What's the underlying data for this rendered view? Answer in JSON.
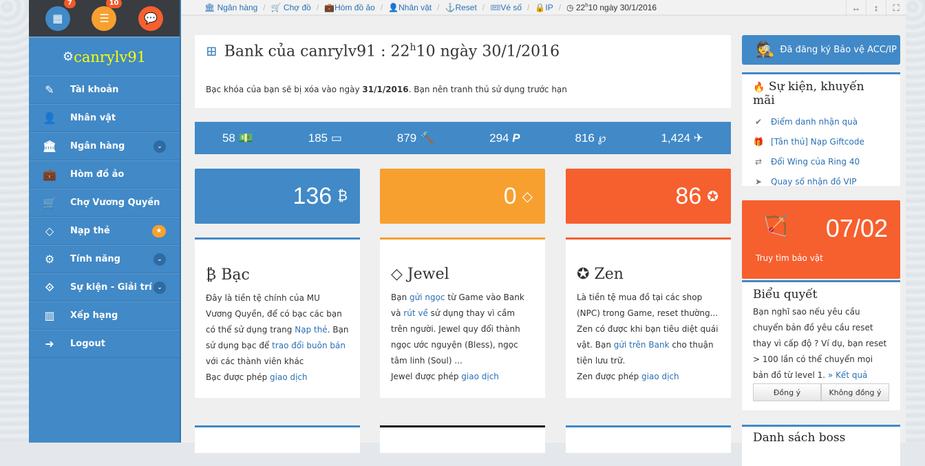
{
  "sidebar": {
    "notifications": [
      {
        "icon": "calendar-icon",
        "count": "7",
        "color": "#4189c7"
      },
      {
        "icon": "list-icon",
        "count": "10",
        "color": "#f7a030"
      },
      {
        "icon": "chat-icon",
        "count": "",
        "color": "#f65f2e"
      }
    ],
    "username": "canrylv91",
    "items": [
      {
        "label": "Tài khoản",
        "icon": "edit-icon"
      },
      {
        "label": "Nhân vật",
        "icon": "user-icon"
      },
      {
        "label": "Ngân hàng",
        "icon": "bank-icon",
        "expandable": true
      },
      {
        "label": "Hòm đồ ảo",
        "icon": "suitcase-icon"
      },
      {
        "label": "Chợ Vương Quyền",
        "icon": "cart-icon"
      },
      {
        "label": "Nạp thẻ",
        "icon": "diamond-icon",
        "star": true
      },
      {
        "label": "Tính năng",
        "icon": "gears-icon",
        "expandable": true
      },
      {
        "label": "Sự kiện - Giải trí",
        "icon": "link-icon",
        "expandable": true
      },
      {
        "label": "Xếp hạng",
        "icon": "bar-chart-icon"
      },
      {
        "label": "Logout",
        "icon": "sign-out-icon"
      }
    ]
  },
  "breadcrumb": {
    "items": [
      "Ngân hàng",
      "Chợ đồ",
      "Hòm đồ ảo",
      "Nhân vật",
      "Reset",
      "Vé số",
      "IP"
    ],
    "time_hour": "22",
    "time_sup": "h",
    "time_rest": "10 ngày 30/1/2016"
  },
  "bank": {
    "title_pre": "Bank của canrylv91 : 22",
    "title_sup": "h",
    "title_post": "10 ngày 30/1/2016",
    "notice_pre": "Bạc khóa của bạn sẽ bị xóa vào ngày ",
    "notice_date": "31/1/2016",
    "notice_post": ". Bạn nên tranh thủ sử dụng trước hạn"
  },
  "stats": [
    {
      "value": "58",
      "icon": "money-icon"
    },
    {
      "value": "185",
      "icon": "credit-card-icon"
    },
    {
      "value": "879",
      "icon": "gavel-icon"
    },
    {
      "value": "294",
      "icon": "paypal-icon"
    },
    {
      "value": "816",
      "icon": "pinterest-icon"
    },
    {
      "value": "1,424",
      "icon": "plane-icon"
    }
  ],
  "currencies": [
    {
      "value": "136",
      "color": "#4189c7"
    },
    {
      "value": "0",
      "color": "#f7a030"
    },
    {
      "value": "86",
      "color": "#f65f2e"
    }
  ],
  "cards": {
    "bac": {
      "title": "Bạc",
      "t1": "Đây là tiền tệ chính của MU Vương Quyền, để có bạc các bạn có thể sử dụng trang ",
      "l1": "Nạp thẻ",
      "t2": ". Bạn sử dụng bạc để ",
      "l2": "trao đổi buôn bán",
      "t3": " với các thành viên khác",
      "t4": "Bạc được phép ",
      "l3": "giao dịch"
    },
    "jewel": {
      "title": "Jewel",
      "t1": "Bạn ",
      "l1": "gửi ngọc",
      "t2": " từ Game vào Bank và ",
      "l2": "rút về",
      "t3": " sử dụng thay vì cầm trên người. Jewel quy đổi thành ngọc ước nguyện (Bless), ngọc tâm linh (Soul) ...",
      "t4": "Jewel được phép ",
      "l3": "giao dịch"
    },
    "zen": {
      "title": "Zen",
      "t1": "Là tiền tệ mua đồ tại các shop (NPC) trong Game, reset thường... Zen có được khi bạn tiêu diệt quái vật. Bạn ",
      "l1": "gửi trên Bank",
      "t2": " cho thuận tiện lưu trữ.",
      "t4": "Zen được phép ",
      "l3": "giao dịch"
    }
  },
  "right": {
    "protect_label": "Đã đăng ký Bảo vệ ACC/IP",
    "events_title": "Sự kiện, khuyến mãi",
    "events": [
      {
        "label": "Điểm danh nhận quà",
        "icon": "check-circle-icon"
      },
      {
        "label": "[Tân thủ] Nạp Giftcode",
        "icon": "gift-icon"
      },
      {
        "label": "Đổi Wing của Ring 40",
        "icon": "exchange-icon"
      },
      {
        "label": "Quay số nhận đồ VIP",
        "icon": "location-arrow-icon"
      }
    ],
    "treasure": {
      "date": "07/02",
      "label": "Truy tìm bảo vật"
    },
    "vote": {
      "title": "Biểu quyết",
      "question": "Bạn nghĩ sao nếu yêu cầu chuyển bản đồ yêu cầu reset thay vì cấp độ ? Ví dụ, bạn reset > 100 lần có thể chuyển mọi bản đồ từ level 1. ",
      "result_link": "» Kết quả",
      "agree": "Đồng ý",
      "disagree": "Không đồng ý"
    },
    "boss_title": "Danh sách boss"
  }
}
